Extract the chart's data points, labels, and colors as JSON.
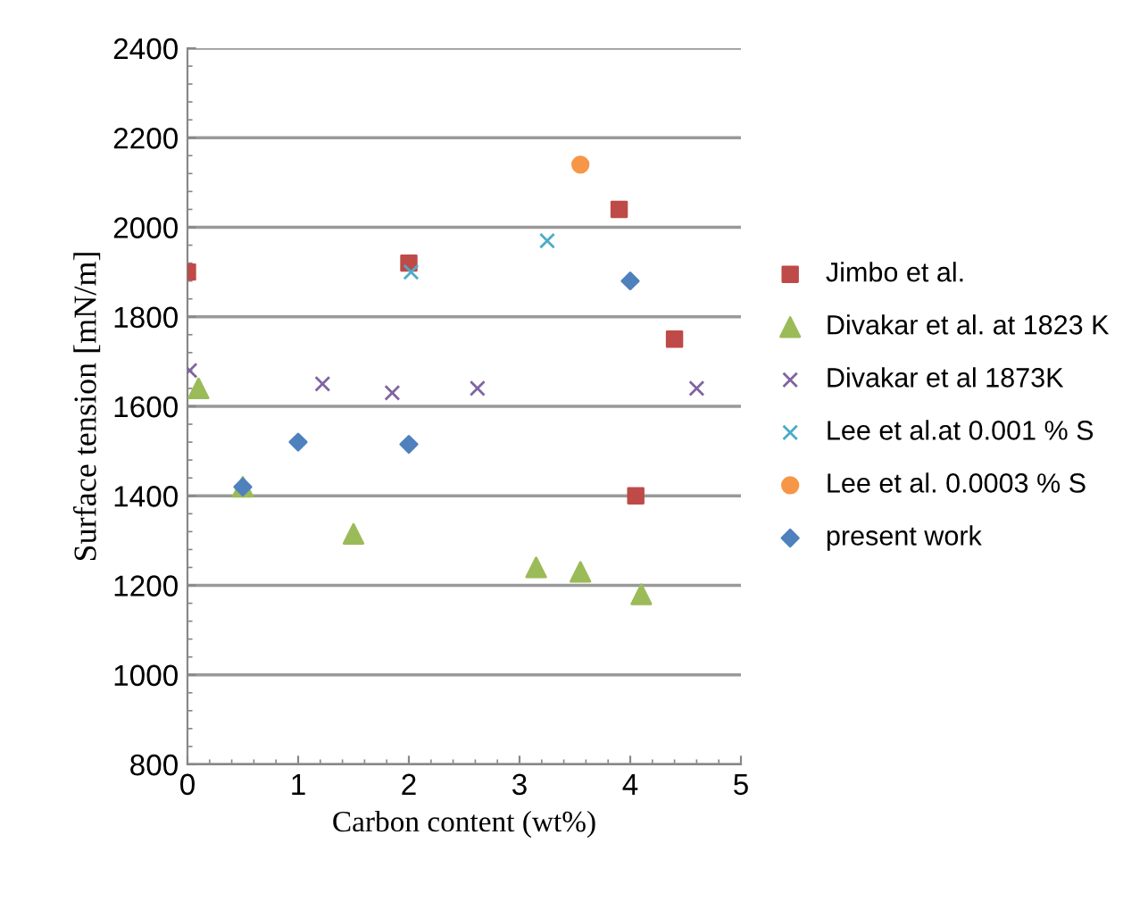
{
  "chart_data": {
    "type": "scatter",
    "xlabel": "Carbon content (wt%)",
    "ylabel": "Surface tension [mN/m]",
    "xlim": [
      0,
      5
    ],
    "ylim": [
      800,
      2400
    ],
    "xticks": [
      0,
      1,
      2,
      3,
      4,
      5
    ],
    "yticks": [
      800,
      1000,
      1200,
      1400,
      1600,
      1800,
      2000,
      2200,
      2400
    ],
    "grid": "y",
    "legend": "right",
    "series": [
      {
        "name": "Jimbo et al.",
        "color": "#be4b48",
        "marker": "square",
        "x": [
          0,
          2,
          3.9,
          4.4,
          4.05
        ],
        "values": [
          1900,
          1920,
          2040,
          1750,
          1400
        ]
      },
      {
        "name": "Divakar et al. at 1823 K",
        "color": "#9bbb59",
        "marker": "triangle",
        "x": [
          0.1,
          0.5,
          1.5,
          3.15,
          3.55,
          4.1
        ],
        "values": [
          1640,
          1420,
          1315,
          1240,
          1230,
          1180
        ]
      },
      {
        "name": "Divakar et al 1873K",
        "color": "#8064a2",
        "marker": "cross",
        "x": [
          0.02,
          1.22,
          1.85,
          2.62,
          4.6
        ],
        "values": [
          1680,
          1650,
          1630,
          1640,
          1640
        ]
      },
      {
        "name": "Lee et al.at 0.001 % S",
        "color": "#4bacc6",
        "marker": "cross",
        "x": [
          2.02,
          3.25
        ],
        "values": [
          1900,
          1970
        ]
      },
      {
        "name": "Lee et al. 0.0003 % S",
        "color": "#f79646",
        "marker": "circle",
        "x": [
          3.55
        ],
        "values": [
          2140
        ]
      },
      {
        "name": "present work",
        "color": "#4f81bd",
        "marker": "diamond",
        "x": [
          0.5,
          1,
          2,
          4
        ],
        "values": [
          1420,
          1520,
          1515,
          1880
        ]
      }
    ]
  }
}
